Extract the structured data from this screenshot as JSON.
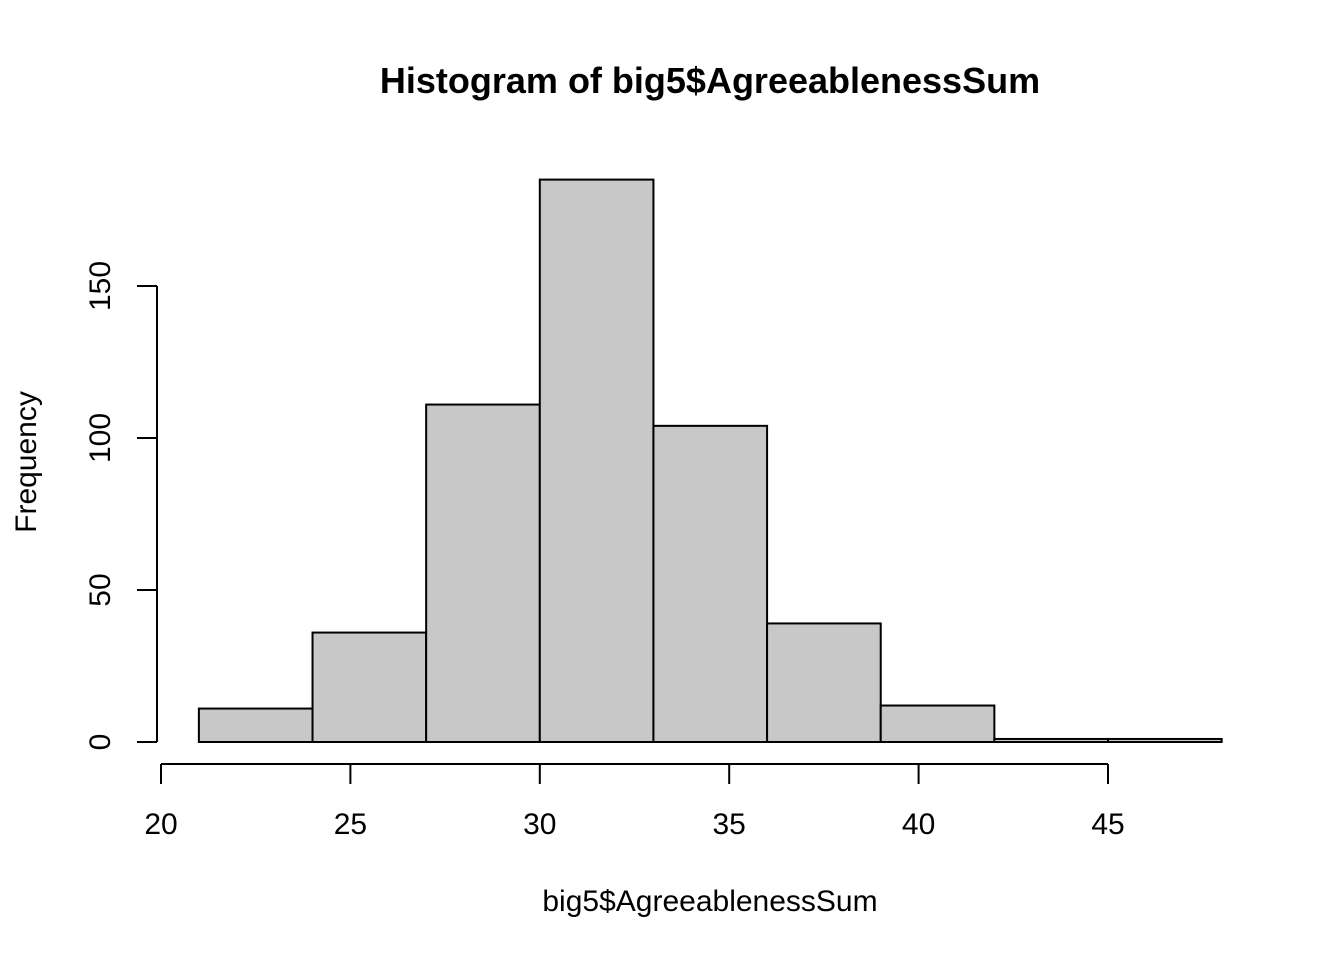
{
  "chart_data": {
    "type": "bar",
    "title": "Histogram of big5$AgreeablenessSum",
    "xlabel": "big5$AgreeablenessSum",
    "ylabel": "Frequency",
    "bins": [
      {
        "from": 21,
        "to": 24,
        "count": 11
      },
      {
        "from": 24,
        "to": 27,
        "count": 36
      },
      {
        "from": 27,
        "to": 30,
        "count": 111
      },
      {
        "from": 30,
        "to": 33,
        "count": 185
      },
      {
        "from": 33,
        "to": 36,
        "count": 104
      },
      {
        "from": 36,
        "to": 39,
        "count": 39
      },
      {
        "from": 39,
        "to": 42,
        "count": 12
      },
      {
        "from": 42,
        "to": 45,
        "count": 1
      },
      {
        "from": 45,
        "to": 48,
        "count": 1
      }
    ],
    "x_ticks": [
      20,
      25,
      30,
      35,
      40,
      45
    ],
    "y_ticks": [
      0,
      50,
      100,
      150
    ],
    "xlim": [
      20,
      48
    ],
    "ylim": [
      0,
      185
    ],
    "grid": false,
    "bar_color": "#c8c8c8",
    "edge_color": "#000000"
  }
}
